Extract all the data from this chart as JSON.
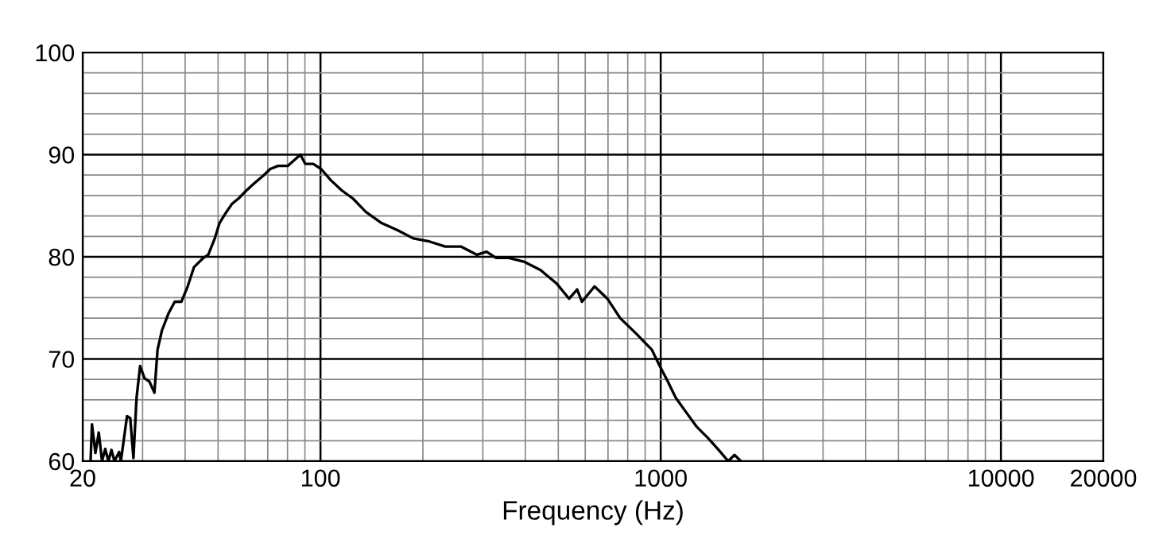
{
  "chart_data": {
    "type": "line",
    "xlabel": "Frequency (Hz)",
    "log": "x",
    "grid": true,
    "legend": false,
    "marker": "none",
    "line_style": "solid",
    "xlim": [
      20,
      20000
    ],
    "xticks": [
      20,
      100,
      1000,
      10000,
      20000
    ],
    "ylim": [
      60,
      100
    ],
    "yticks": [
      60,
      70,
      80,
      90,
      100
    ],
    "series": [
      {
        "color": "#000000",
        "x": [
          21.1,
          21.3,
          21.8,
          22.3,
          22.8,
          23.3,
          23.8,
          24.3,
          24.8,
          25.6,
          25.9,
          27.0,
          27.6,
          28.2,
          28.8,
          29.5,
          30.4,
          31.4,
          32.5,
          33.2,
          34.2,
          35.8,
          37.3,
          39.0,
          40.7,
          42.5,
          45.3,
          46.8,
          48.9,
          50.5,
          52.7,
          55.0,
          57.4,
          60.6,
          63.9,
          68.2,
          71.2,
          75.1,
          80.1,
          84.6,
          87.3,
          90.2,
          95.2,
          100.4,
          107.2,
          115.5,
          124.6,
          135.8,
          151.2,
          168.4,
          187.6,
          208.9,
          232.7,
          259.2,
          288.4,
          307.7,
          328.1,
          357.5,
          398.1,
          443.6,
          494,
          538,
          568,
          587,
          639,
          697,
          760,
          846,
          942,
          994,
          1049,
          1107,
          1193,
          1273,
          1373,
          1480,
          1579,
          1648,
          1721
        ],
        "values": [
          60.0,
          63.6,
          60.8,
          62.8,
          60.0,
          61.2,
          60.0,
          61.1,
          60.0,
          60.9,
          60.0,
          64.4,
          64.2,
          60.3,
          66.2,
          69.3,
          68.1,
          67.8,
          66.7,
          70.9,
          72.8,
          74.5,
          75.6,
          75.6,
          77.1,
          79.0,
          79.9,
          80.2,
          81.8,
          83.3,
          84.3,
          85.2,
          85.7,
          86.5,
          87.2,
          88.0,
          88.6,
          88.9,
          88.9,
          89.6,
          90.0,
          89.1,
          89.1,
          88.6,
          87.5,
          86.5,
          85.7,
          84.4,
          83.3,
          82.6,
          81.8,
          81.5,
          81.0,
          81.0,
          80.2,
          80.5,
          79.9,
          79.9,
          79.5,
          78.7,
          77.4,
          75.9,
          76.8,
          75.6,
          77.1,
          75.9,
          74.0,
          72.5,
          70.9,
          69.3,
          67.8,
          66.2,
          64.7,
          63.4,
          62.3,
          61.1,
          60.0,
          60.6,
          60.0
        ]
      }
    ]
  }
}
